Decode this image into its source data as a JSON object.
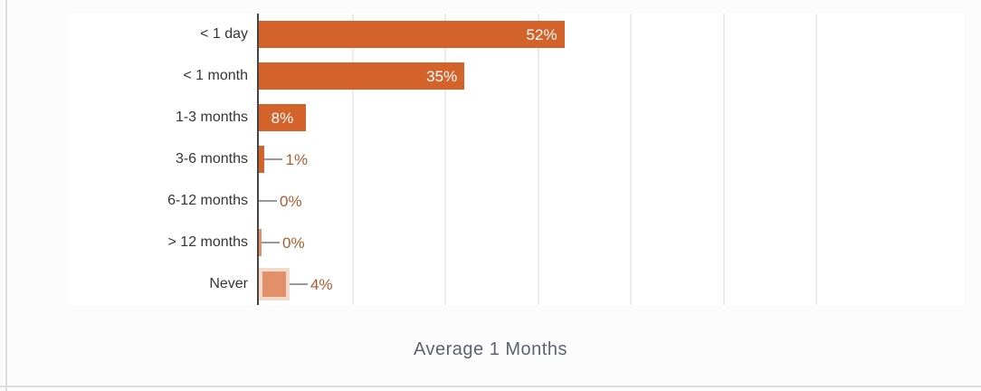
{
  "chart_data": {
    "type": "bar",
    "orientation": "horizontal",
    "title": "",
    "xlabel": "Average 1 Months",
    "categories": [
      "< 1 day",
      "< 1 month",
      "1-3 months",
      "3-6 months",
      "6-12 months",
      "> 12 months",
      "Never"
    ],
    "values": [
      52,
      35,
      8,
      1,
      0,
      0,
      4
    ],
    "data_labels": [
      "52%",
      "35%",
      "8%",
      "1%",
      "0%",
      "0%",
      "4%"
    ],
    "xlim": [
      0,
      120
    ],
    "grid": "vertical-gridlines-only",
    "gridline_values": [
      15.8,
      31.6,
      47.4,
      63.2,
      79.0,
      94.8
    ],
    "legend": "none",
    "bars": [
      {
        "category": "< 1 day",
        "value": 52,
        "label": "52%",
        "variant": "solid",
        "label_pos": "inside-right"
      },
      {
        "category": "< 1 month",
        "value": 35,
        "label": "35%",
        "variant": "solid",
        "label_pos": "inside-right"
      },
      {
        "category": "1-3 months",
        "value": 8,
        "label": "8%",
        "variant": "solid",
        "label_pos": "inside-center"
      },
      {
        "category": "3-6 months",
        "value": 1,
        "label": "1%",
        "variant": "solid",
        "label_pos": "outside"
      },
      {
        "category": "6-12 months",
        "value": 0,
        "label": "0%",
        "variant": "none",
        "label_pos": "outside"
      },
      {
        "category": "> 12 months",
        "value": 0,
        "label": "0%",
        "variant": "light-sliver",
        "label_pos": "outside"
      },
      {
        "category": "Never",
        "value": 4,
        "label": "4%",
        "variant": "light-emphasis",
        "label_pos": "outside"
      }
    ]
  },
  "colors": {
    "bar": "#d4632b",
    "bar_light": "#e2906a",
    "bar_rim": "rgba(224,142,98,0.33)",
    "label_inside": "#ffffff",
    "label_outside": "#ab5c2c",
    "leader": "#999999",
    "axis": "#454545",
    "gridline": "#ececec",
    "category": "#363636",
    "title": "#5e6372",
    "border": "#dcdcdc",
    "plot_bg": "#ffffff",
    "page_bg": "#fcfcfc"
  }
}
